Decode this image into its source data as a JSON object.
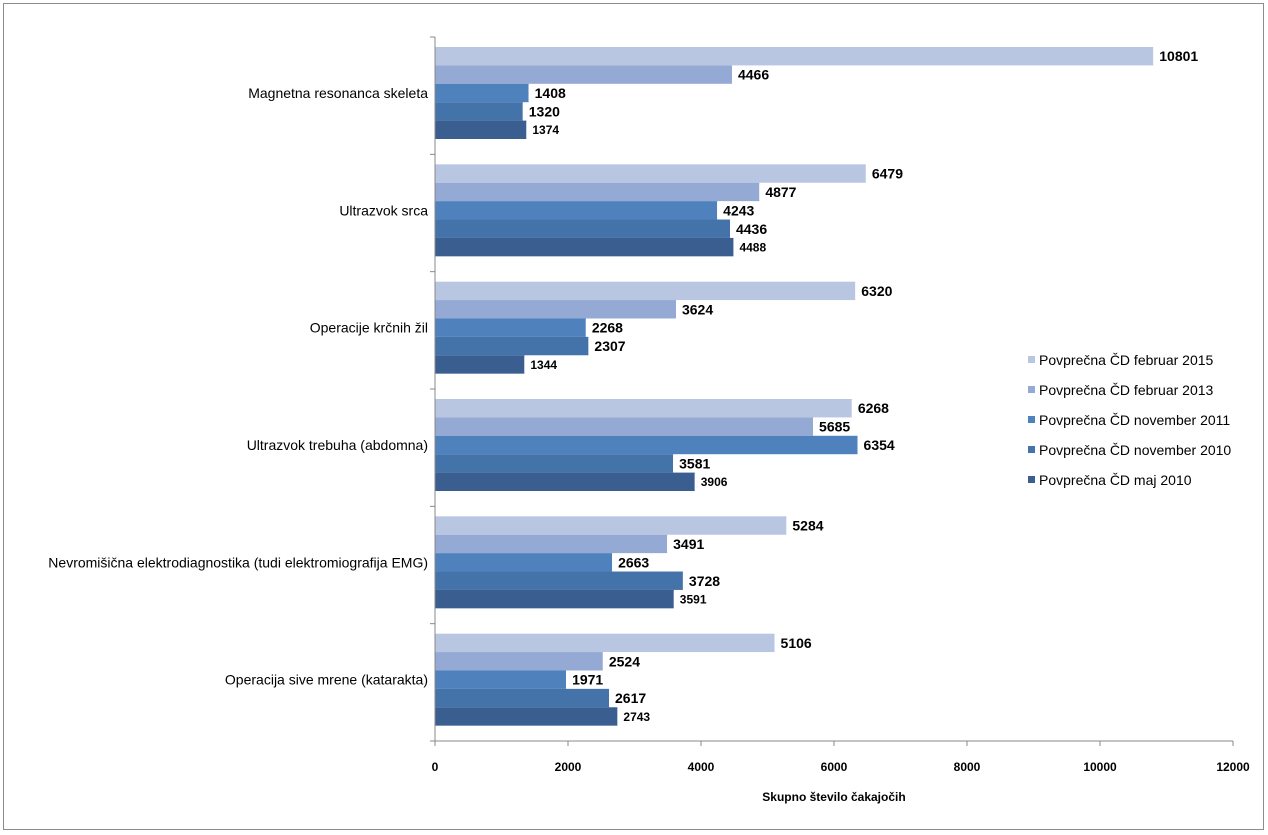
{
  "chart_data": {
    "type": "bar",
    "orientation": "horizontal",
    "categories": [
      "Magnetna resonanca skeleta",
      "Ultrazvok srca",
      "Operacije krčnih žil",
      "Ultrazvok trebuha (abdomna)",
      "Nevromišična elektrodiagnostika (tudi elektromiografija EMG)",
      "Operacija sive mrene (katarakta)"
    ],
    "series": [
      {
        "name": "Povprečna ČD februar 2015",
        "color": "#b9c6e2",
        "values": [
          10801,
          6479,
          6320,
          6268,
          5284,
          5106
        ]
      },
      {
        "name": "Povprečna ČD februar 2013",
        "color": "#94a9d3",
        "values": [
          4466,
          4877,
          3624,
          5685,
          3491,
          2524
        ]
      },
      {
        "name": "Povprečna ČD november 2011",
        "color": "#4f81bd",
        "values": [
          1408,
          4243,
          2268,
          6354,
          2663,
          1971
        ]
      },
      {
        "name": "Povprečna ČD november 2010",
        "color": "#4473aa",
        "values": [
          1320,
          4436,
          2307,
          3581,
          3728,
          2617
        ]
      },
      {
        "name": "Povprečna ČD maj 2010",
        "color": "#3a5e90",
        "values": [
          1374,
          4488,
          1344,
          3906,
          3591,
          2743
        ]
      }
    ],
    "xlabel": "Skupno število čakajočih",
    "ylabel": "",
    "title": "",
    "xlim": [
      0,
      12000
    ],
    "xticks": [
      "0",
      "2000",
      "4000",
      "6000",
      "8000",
      "10000",
      "12000"
    ],
    "grid": false,
    "legend_position": "right"
  }
}
